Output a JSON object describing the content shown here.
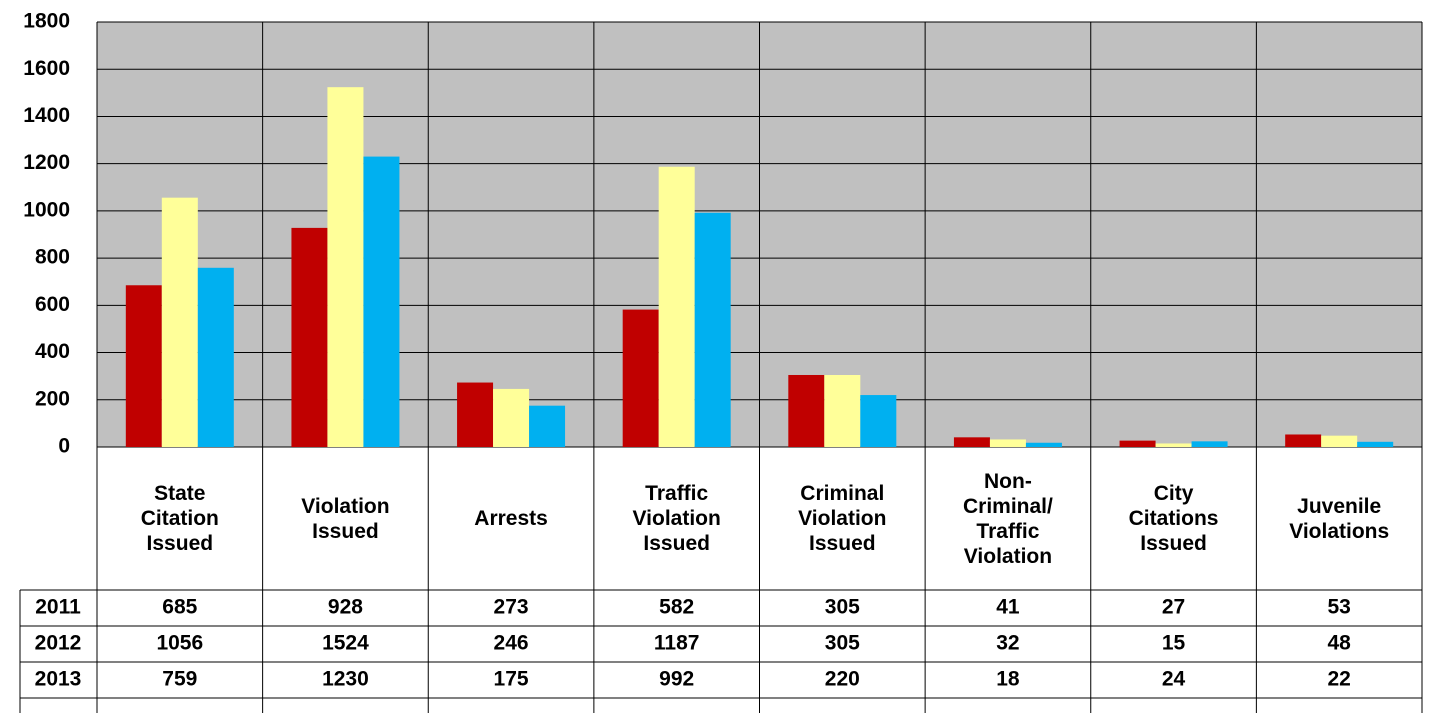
{
  "chart_data": {
    "type": "bar",
    "categories": [
      "State Citation Issued",
      "Violation Issued",
      "Arrests",
      "Traffic Violation Issued",
      "Criminal Violation Issued",
      "Non-Criminal/ Traffic Violation",
      "City Citations Issued",
      "Juvenile Violations"
    ],
    "series": [
      {
        "name": "2011",
        "color": "#c00000",
        "values": [
          685,
          928,
          273,
          582,
          305,
          41,
          27,
          53
        ]
      },
      {
        "name": "2012",
        "color": "#ffff99",
        "values": [
          1056,
          1524,
          246,
          1187,
          305,
          32,
          15,
          48
        ]
      },
      {
        "name": "2013",
        "color": "#00b0f0",
        "values": [
          759,
          1230,
          175,
          992,
          220,
          18,
          24,
          22
        ]
      }
    ],
    "ylim": [
      0,
      1800
    ],
    "yticks": [
      0,
      200,
      400,
      600,
      800,
      1000,
      1200,
      1400,
      1600,
      1800
    ],
    "grid": true,
    "plot_background": "#c0c0c0"
  }
}
